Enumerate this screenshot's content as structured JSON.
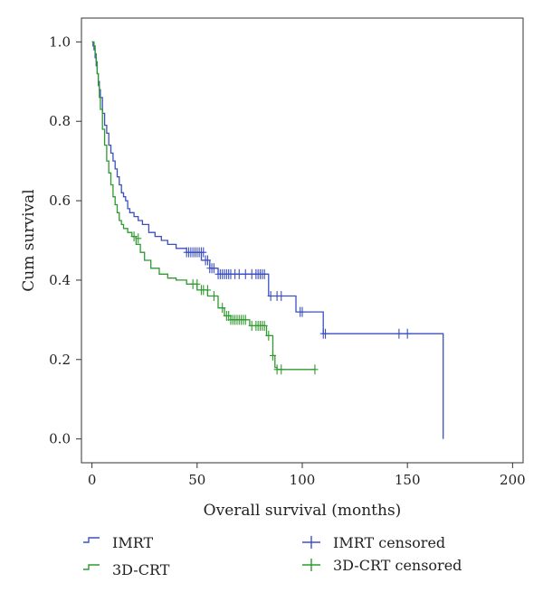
{
  "chart_data": {
    "type": "line",
    "step": true,
    "xlabel": "Overall survival (months)",
    "ylabel": "Cum survival",
    "xlim": [
      -5,
      205
    ],
    "ylim": [
      -0.06,
      1.06
    ],
    "xticks": [
      0,
      50,
      100,
      150,
      200
    ],
    "yticks": [
      0.0,
      0.2,
      0.4,
      0.6,
      0.8,
      1.0
    ],
    "ytick_labels": [
      "0.0",
      "0.2",
      "0.4",
      "0.6",
      "0.8",
      "1.0"
    ],
    "grid": false,
    "legend": {
      "position": "bottom",
      "entries": [
        {
          "label": "IMRT",
          "symbol": "step",
          "color": "#3b4fc0"
        },
        {
          "label": "3D-CRT",
          "symbol": "step",
          "color": "#2e9a2e"
        },
        {
          "label": "IMRT censored",
          "symbol": "plus",
          "color": "#3b4fc0"
        },
        {
          "label": "3D-CRT censored",
          "symbol": "plus",
          "color": "#2e9a2e"
        }
      ]
    },
    "series": [
      {
        "name": "IMRT",
        "color": "#3b4fc0",
        "x": [
          0,
          0.5,
          1,
          1.5,
          2,
          2.5,
          3,
          3.5,
          4,
          5,
          6,
          7,
          8,
          9,
          10,
          11,
          12,
          13,
          14,
          15,
          16,
          17,
          18,
          20,
          22,
          24,
          27,
          30,
          33,
          36,
          40,
          45,
          52,
          56,
          60,
          84,
          97,
          110,
          167,
          167
        ],
        "y": [
          1.0,
          0.99,
          0.98,
          0.96,
          0.94,
          0.92,
          0.9,
          0.88,
          0.86,
          0.82,
          0.79,
          0.77,
          0.74,
          0.72,
          0.7,
          0.68,
          0.66,
          0.64,
          0.62,
          0.61,
          0.6,
          0.58,
          0.57,
          0.56,
          0.55,
          0.54,
          0.52,
          0.51,
          0.5,
          0.49,
          0.48,
          0.47,
          0.45,
          0.43,
          0.415,
          0.36,
          0.32,
          0.265,
          0.265,
          0.0
        ]
      },
      {
        "name": "3D-CRT",
        "color": "#2e9a2e",
        "x": [
          0,
          1,
          1.5,
          2,
          2.5,
          3,
          3.5,
          4,
          5,
          6,
          7,
          8,
          9,
          10,
          11,
          12,
          13,
          14,
          15,
          17,
          19,
          21,
          23,
          25,
          28,
          32,
          36,
          40,
          45,
          50,
          55,
          60,
          63,
          66,
          75,
          83,
          86,
          87,
          88,
          106
        ],
        "y": [
          1.0,
          0.99,
          0.97,
          0.95,
          0.92,
          0.89,
          0.86,
          0.83,
          0.78,
          0.74,
          0.7,
          0.67,
          0.64,
          0.61,
          0.59,
          0.57,
          0.55,
          0.54,
          0.53,
          0.52,
          0.51,
          0.49,
          0.47,
          0.45,
          0.43,
          0.415,
          0.405,
          0.4,
          0.39,
          0.375,
          0.36,
          0.33,
          0.31,
          0.3,
          0.285,
          0.26,
          0.21,
          0.18,
          0.175,
          0.175
        ]
      }
    ],
    "censored": [
      {
        "name": "IMRT censored",
        "color": "#3b4fc0",
        "x": [
          45,
          46,
          47,
          48,
          49,
          50,
          51,
          52,
          53,
          54,
          55,
          56,
          57,
          58,
          60,
          61,
          62,
          63,
          64,
          65,
          66,
          68,
          70,
          73,
          76,
          78,
          79,
          80,
          81,
          82,
          85,
          88,
          90,
          99,
          100,
          110,
          111,
          146,
          150
        ],
        "y": [
          0.47,
          0.47,
          0.47,
          0.47,
          0.47,
          0.47,
          0.47,
          0.47,
          0.47,
          0.45,
          0.45,
          0.43,
          0.43,
          0.43,
          0.415,
          0.415,
          0.415,
          0.415,
          0.415,
          0.415,
          0.415,
          0.415,
          0.415,
          0.415,
          0.415,
          0.415,
          0.415,
          0.415,
          0.415,
          0.415,
          0.36,
          0.36,
          0.36,
          0.32,
          0.32,
          0.265,
          0.265,
          0.265,
          0.265
        ]
      },
      {
        "name": "3D-CRT censored",
        "color": "#2e9a2e",
        "x": [
          20,
          22,
          48,
          50,
          52,
          53,
          55,
          58,
          62,
          64,
          65,
          66,
          67,
          68,
          69,
          70,
          71,
          72,
          73,
          76,
          78,
          79,
          80,
          81,
          82,
          84,
          86,
          88,
          90,
          106
        ],
        "y": [
          0.51,
          0.505,
          0.39,
          0.39,
          0.375,
          0.375,
          0.375,
          0.36,
          0.33,
          0.31,
          0.31,
          0.3,
          0.3,
          0.3,
          0.3,
          0.3,
          0.3,
          0.3,
          0.3,
          0.285,
          0.285,
          0.285,
          0.285,
          0.285,
          0.285,
          0.26,
          0.21,
          0.175,
          0.175,
          0.175
        ]
      }
    ]
  }
}
